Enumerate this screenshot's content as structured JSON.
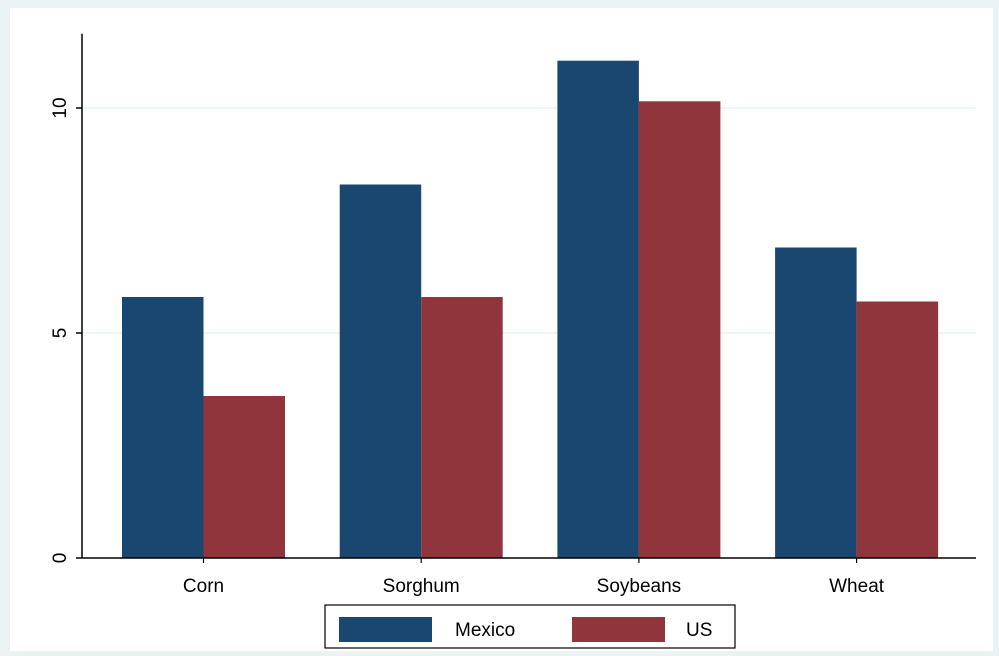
{
  "colors": {
    "background": "#eaf2f3",
    "plot_background": "#ffffff",
    "grid": "#eaf2f3",
    "axis": "#000000"
  },
  "chart_data": {
    "type": "bar",
    "title": "",
    "xlabel": "",
    "ylabel": "",
    "categories": [
      "Corn",
      "Sorghum",
      "Soybeans",
      "Wheat"
    ],
    "series": [
      {
        "name": "Mexico",
        "color": "#1a476f",
        "values": [
          5.8,
          8.3,
          11.05,
          6.9
        ]
      },
      {
        "name": "US",
        "color": "#90353b",
        "values": [
          3.6,
          5.8,
          10.15,
          5.7
        ]
      }
    ],
    "ylim": [
      0,
      11.65
    ],
    "yticks": [
      0,
      5,
      10
    ],
    "ytick_labels": [
      "0",
      "5",
      "10"
    ],
    "grid": true,
    "legend_position": "bottom-center"
  }
}
